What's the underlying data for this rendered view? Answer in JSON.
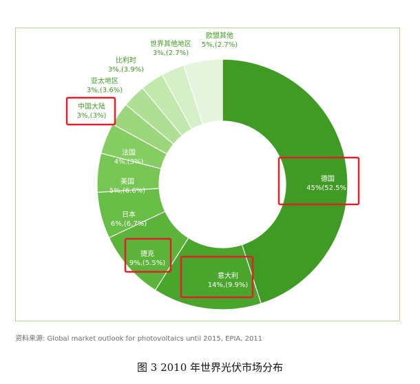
{
  "chart_data": {
    "type": "pie",
    "donut": true,
    "slices": [
      {
        "name": "德国",
        "label": "45%(52.5%)",
        "share_2010": 45,
        "share_2009": 52.5,
        "color": "#3f9b24",
        "label_color": "#ffffff",
        "highlighted": true
      },
      {
        "name": "意大利",
        "label": "14%,(9.9%)",
        "share_2010": 14,
        "share_2009": 9.9,
        "color": "#4aa52d",
        "label_color": "#ffffff",
        "highlighted": true
      },
      {
        "name": "捷克",
        "label": "9%,(5.5%)",
        "share_2010": 9,
        "share_2009": 5.5,
        "color": "#5cb43a",
        "label_color": "#ffffff",
        "highlighted": true
      },
      {
        "name": "日本",
        "label": "6%,(6.7%)",
        "share_2010": 6,
        "share_2009": 6.7,
        "color": "#68bd45",
        "label_color": "#ffffff",
        "highlighted": false
      },
      {
        "name": "美国",
        "label": "5%,(6.6%)",
        "share_2010": 5,
        "share_2009": 6.6,
        "color": "#77c553",
        "label_color": "#ffffff",
        "highlighted": false
      },
      {
        "name": "法国",
        "label": "4%,(3%)",
        "share_2010": 4,
        "share_2009": 3,
        "color": "#86cd63",
        "label_color": "#ffffff",
        "highlighted": false
      },
      {
        "name": "中国大陆",
        "label": "3%,(3%)",
        "share_2010": 3,
        "share_2009": 3,
        "color": "#9bd67c",
        "label_color": "#3f9b24",
        "highlighted": true
      },
      {
        "name": "亚太地区",
        "label": "3%,(3.6%)",
        "share_2010": 3,
        "share_2009": 3.6,
        "color": "#afdf95",
        "label_color": "#3f9b24",
        "highlighted": false
      },
      {
        "name": "比利时",
        "label": "3%,(3.9%)",
        "share_2010": 3,
        "share_2009": 3.9,
        "color": "#c3e8ae",
        "label_color": "#3f9b24",
        "highlighted": false
      },
      {
        "name": "世界其他地区",
        "label": "3%,(2.7%)",
        "share_2010": 3,
        "share_2009": 2.7,
        "color": "#d5efc6",
        "label_color": "#3f9b24",
        "highlighted": false
      },
      {
        "name": "欧盟其他",
        "label": "5%,(2.7%)",
        "share_2010": 5,
        "share_2009": 2.7,
        "color": "#e5f4dc",
        "label_color": "#3f9b24",
        "highlighted": false
      }
    ]
  },
  "source_text": "资料来源:  Global market outlook for photovoltaics until 2015, EPIA, 2011",
  "caption": "图 3 2010 年世界光伏市场分布",
  "colors": {
    "highlight_box": "#e0202a",
    "frame_border": "#b5d98a",
    "slice_divider": "#ffffff"
  }
}
